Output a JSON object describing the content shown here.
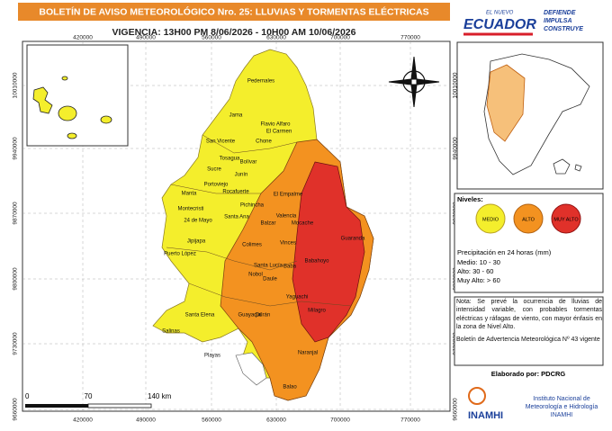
{
  "header": {
    "title": "BOLETÍN DE AVISO METEOROLÓGICO  Nro. 25: LLUVIAS Y TORMENTAS ELÉCTRICAS",
    "validity": "VIGENCIA: 13H00 PM 8/06/2026 - 10H00 AM 10/06/2026"
  },
  "logo": {
    "tag": "EL NUEVO",
    "name": "ECUADOR",
    "motto": [
      "DEFIENDE",
      "IMPULSA",
      "CONSTRUYE"
    ]
  },
  "grid": {
    "x_labels": [
      "420000",
      "490000",
      "560000",
      "630000",
      "700000",
      "770000"
    ],
    "y_labels": [
      "10010000",
      "9940000",
      "9870000",
      "9800000",
      "9730000",
      "9660000"
    ]
  },
  "scale": [
    "0",
    "70",
    "140 km"
  ],
  "places": [
    "Pedernales",
    "Jama",
    "Flavio Alfaro",
    "El Carmen",
    "San Vicente",
    "Chone",
    "Sucre",
    "Tosagua",
    "Bolívar",
    "Junín",
    "Portoviejo",
    "Rocafuerte",
    "Manta",
    "Montecristi",
    "Santa Ana",
    "24 de Mayo",
    "Pichincha",
    "El Empalme",
    "Balzar",
    "Puerto López",
    "Jipijapa",
    "Colimes",
    "Vinces",
    "Santa Lucía",
    "Daule",
    "Nobol",
    "Guayaquil",
    "Playas",
    "Santa Elena",
    "Salinas",
    "Valencia",
    "Mocache",
    "Baba",
    "Babahoyo",
    "Guaranda",
    "Milagro",
    "Naranjal",
    "Balao",
    "Durán",
    "Yaguachi"
  ],
  "legend": {
    "title": "Niveles:",
    "levels": [
      "MEDIO",
      "ALTO",
      "MUY ALTO"
    ],
    "precip_title": "Precipitación en 24 horas (mm)",
    "ranges": [
      "Medio: 10 - 30",
      "Alto: 30 - 60",
      "Muy Alto: > 60"
    ]
  },
  "note": [
    "Nota: Se prevé la ocurrencia de lluvias de intensidad variable, con probables tormentas eléctricas y ráfagas de viento, con mayor énfasis en la zona de Nivel Alto.",
    "Boletín de Advertencia Meteorológica Nº 43 vigente"
  ],
  "credit": "Elaborado por: PDCRG",
  "institute": {
    "acronym": "INAMHI",
    "lines": [
      "Instituto Nacional de",
      "Meteorología e Hidrología",
      "INAMHI"
    ]
  }
}
